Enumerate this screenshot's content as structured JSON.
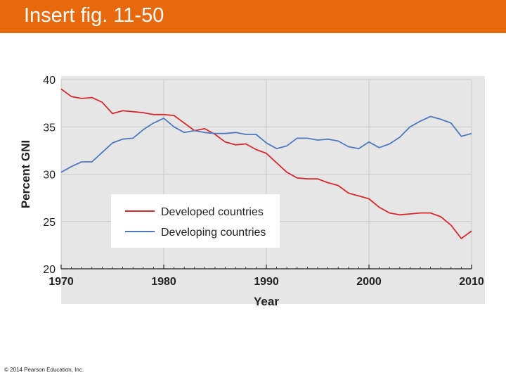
{
  "slide": {
    "title": "Insert fig. 11-50",
    "copyright": "© 2014 Pearson Education, Inc."
  },
  "colors": {
    "header": "#e8690c",
    "plot_background": "#e6e6e6",
    "developed": "#d42a2f",
    "developing": "#4f79be"
  },
  "chart_data": {
    "type": "line",
    "title": "",
    "xlabel": "Year",
    "ylabel": "Percent GNI",
    "xlim": [
      1970,
      2010
    ],
    "ylim": [
      20,
      40
    ],
    "xticks": [
      1970,
      1980,
      1990,
      2000,
      2010
    ],
    "yticks": [
      20,
      25,
      30,
      35,
      40
    ],
    "legend_position": "lower-left",
    "x": [
      1970,
      1971,
      1972,
      1973,
      1974,
      1975,
      1976,
      1977,
      1978,
      1979,
      1980,
      1981,
      1982,
      1983,
      1984,
      1985,
      1986,
      1987,
      1988,
      1989,
      1990,
      1991,
      1992,
      1993,
      1994,
      1995,
      1996,
      1997,
      1998,
      1999,
      2000,
      2001,
      2002,
      2003,
      2004,
      2005,
      2006,
      2007,
      2008,
      2009,
      2010
    ],
    "series": [
      {
        "name": "Developed countries",
        "color": "#d42a2f",
        "values": [
          39.0,
          38.2,
          38.0,
          38.1,
          37.6,
          36.4,
          36.7,
          36.6,
          36.5,
          36.3,
          36.3,
          36.2,
          35.4,
          34.6,
          34.8,
          34.2,
          33.4,
          33.1,
          33.2,
          32.6,
          32.2,
          31.2,
          30.2,
          29.6,
          29.5,
          29.5,
          29.1,
          28.8,
          28.0,
          27.7,
          27.4,
          26.5,
          25.9,
          25.7,
          25.8,
          25.9,
          25.9,
          25.5,
          24.6,
          23.2,
          24.0
        ]
      },
      {
        "name": "Developing countries",
        "color": "#4f79be",
        "values": [
          30.2,
          30.8,
          31.3,
          31.3,
          32.3,
          33.3,
          33.7,
          33.8,
          34.7,
          35.4,
          35.9,
          35.0,
          34.4,
          34.6,
          34.4,
          34.3,
          34.3,
          34.4,
          34.2,
          34.2,
          33.3,
          32.7,
          33.0,
          33.8,
          33.8,
          33.6,
          33.7,
          33.5,
          32.9,
          32.7,
          33.4,
          32.8,
          33.2,
          33.9,
          35.0,
          35.6,
          36.1,
          35.8,
          35.4,
          34.0,
          34.3
        ]
      }
    ]
  }
}
